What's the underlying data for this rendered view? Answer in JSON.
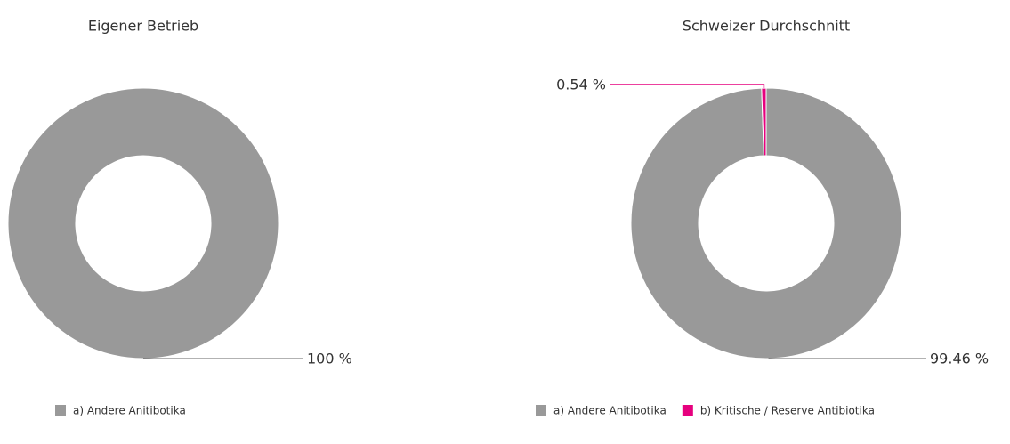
{
  "chart_data": [
    {
      "type": "pie",
      "title": "Eigener Betrieb",
      "categories": [
        "a) Andere Anitibotika"
      ],
      "values": [
        100
      ],
      "value_labels": [
        "100 %"
      ],
      "colors": [
        "#999999"
      ]
    },
    {
      "type": "pie",
      "title": "Schweizer Durchschnitt",
      "categories": [
        "a) Andere Anitibotika",
        "b) Kritische / Reserve Antibiotika"
      ],
      "values": [
        99.46,
        0.54
      ],
      "value_labels": [
        "99.46 %",
        "0.54 %"
      ],
      "colors": [
        "#999999",
        "#e6007e"
      ]
    }
  ]
}
